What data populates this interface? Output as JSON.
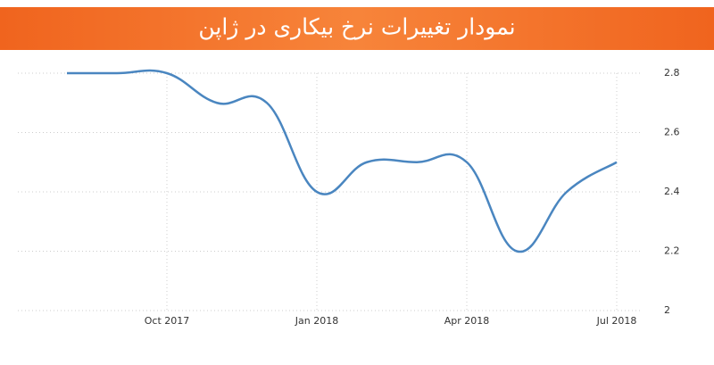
{
  "chart_data": {
    "type": "line",
    "title": "نمودار تغییرات نرخ بیکاری در ژاپن",
    "categories": [
      null,
      null,
      "Oct 2017",
      null,
      null,
      "Jan 2018",
      null,
      null,
      "Apr 2018",
      null,
      null,
      "Jul 2018"
    ],
    "values": [
      2.8,
      2.8,
      2.8,
      2.7,
      2.7,
      2.4,
      2.5,
      2.5,
      2.5,
      2.2,
      2.4,
      2.5
    ],
    "color": "#4a86c0",
    "ylim": [
      2,
      2.8
    ],
    "yticks": [
      2,
      2.2,
      2.4,
      2.6,
      2.8
    ],
    "grid": true
  }
}
